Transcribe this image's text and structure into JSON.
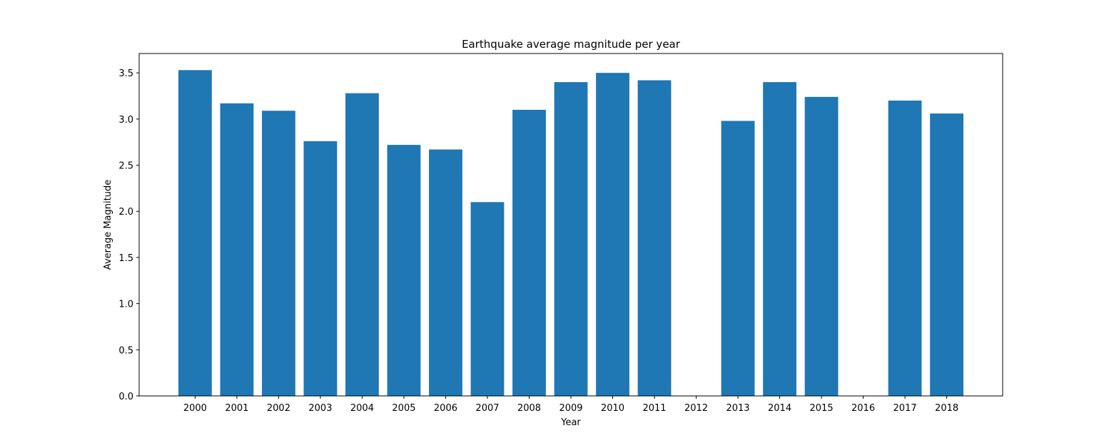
{
  "chart_data": {
    "type": "bar",
    "title": "Earthquake average magnitude per year",
    "xlabel": "Year",
    "ylabel": "Average Magnitude",
    "categories": [
      "2000",
      "2001",
      "2002",
      "2003",
      "2004",
      "2005",
      "2006",
      "2007",
      "2008",
      "2009",
      "2010",
      "2011",
      "2012",
      "2013",
      "2014",
      "2015",
      "2016",
      "2017",
      "2018"
    ],
    "values": [
      3.53,
      3.17,
      3.09,
      2.76,
      3.28,
      2.72,
      2.67,
      2.1,
      3.1,
      3.4,
      3.5,
      3.42,
      null,
      2.98,
      3.4,
      3.24,
      null,
      3.2,
      3.06
    ],
    "ylim": [
      0,
      3.71
    ],
    "yticks": [
      "0.0",
      "0.5",
      "1.0",
      "1.5",
      "2.0",
      "2.5",
      "3.0",
      "3.5"
    ],
    "grid": false,
    "bar_color": "#1f77b4"
  }
}
